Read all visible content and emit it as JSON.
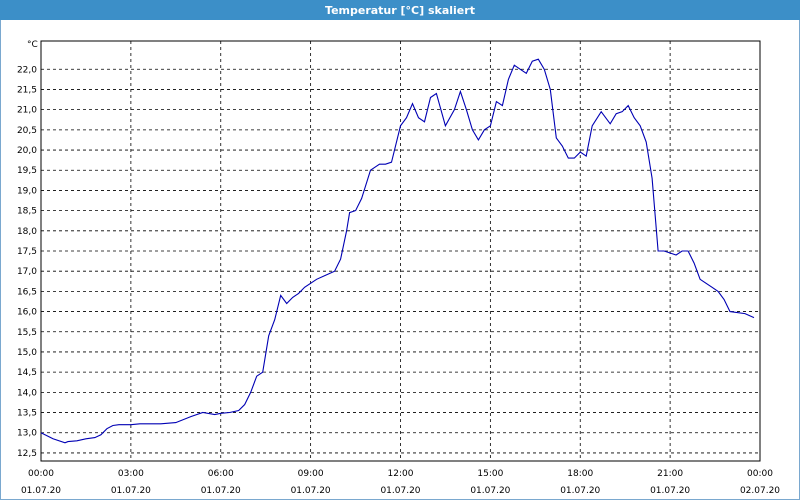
{
  "window": {
    "title": "Temperatur [°C] skaliert"
  },
  "colors": {
    "titlebar": "#3c8fc8",
    "line": "#0000b4",
    "grid": "#000000",
    "axis": "#000000"
  },
  "chart_data": {
    "type": "line",
    "title": "Temperatur [°C] skaliert",
    "ylabel": "°C",
    "xlabel": "",
    "ylim": [
      12.3,
      22.7
    ],
    "xlim": [
      0,
      24
    ],
    "y_ticks": [
      "12,5",
      "13,0",
      "13,5",
      "14,0",
      "14,5",
      "15,0",
      "15,5",
      "16,0",
      "16,5",
      "17,0",
      "17,5",
      "18,0",
      "18,5",
      "19,0",
      "19,5",
      "20,0",
      "20,5",
      "21,0",
      "21,5",
      "22,0"
    ],
    "x_ticks": [
      {
        "time": "00:00",
        "date": "01.07.20"
      },
      {
        "time": "03:00",
        "date": "01.07.20"
      },
      {
        "time": "06:00",
        "date": "01.07.20"
      },
      {
        "time": "09:00",
        "date": "01.07.20"
      },
      {
        "time": "12:00",
        "date": "01.07.20"
      },
      {
        "time": "15:00",
        "date": "01.07.20"
      },
      {
        "time": "18:00",
        "date": "01.07.20"
      },
      {
        "time": "21:00",
        "date": "01.07.20"
      },
      {
        "time": "00:00",
        "date": "02.07.20"
      }
    ],
    "grid": true,
    "series": [
      {
        "x": [
          0.0,
          0.4,
          0.8,
          0.9,
          1.2,
          1.5,
          1.8,
          2.0,
          2.2,
          2.4,
          2.6,
          3.0,
          3.3,
          4.0,
          4.5,
          5.0,
          5.4,
          5.8,
          6.0,
          6.3,
          6.6,
          6.8,
          7.0,
          7.2,
          7.4,
          7.6,
          7.8,
          8.0,
          8.2,
          8.4,
          8.5,
          8.6,
          8.8,
          9.0,
          9.2,
          9.5,
          9.8,
          10.0,
          10.2,
          10.3,
          10.5,
          10.7,
          11.0,
          11.3,
          11.5,
          11.7,
          12.0,
          12.2,
          12.4,
          12.6,
          12.8,
          13.0,
          13.2,
          13.5,
          13.8,
          14.0,
          14.2,
          14.4,
          14.6,
          14.8,
          15.0,
          15.2,
          15.4,
          15.6,
          15.8,
          16.0,
          16.2,
          16.4,
          16.6,
          16.8,
          17.0,
          17.2,
          17.4,
          17.6,
          17.8,
          18.0,
          18.2,
          18.4,
          18.7,
          19.0,
          19.2,
          19.4,
          19.6,
          19.8,
          20.0,
          20.2,
          20.4,
          20.6,
          20.8,
          21.0,
          21.2,
          21.4,
          21.6,
          21.8,
          22.0,
          22.2,
          22.4,
          22.6,
          22.8,
          23.0,
          23.5,
          23.8
        ],
        "values": [
          13.0,
          12.85,
          12.75,
          12.78,
          12.8,
          12.85,
          12.88,
          12.95,
          13.1,
          13.18,
          13.2,
          13.2,
          13.22,
          13.22,
          13.25,
          13.4,
          13.5,
          13.45,
          13.48,
          13.5,
          13.55,
          13.7,
          14.0,
          14.4,
          14.5,
          15.4,
          15.8,
          16.4,
          16.2,
          16.35,
          16.4,
          16.45,
          16.6,
          16.7,
          16.8,
          16.9,
          17.0,
          17.3,
          18.0,
          18.45,
          18.5,
          18.8,
          19.5,
          19.65,
          19.65,
          19.7,
          20.6,
          20.8,
          21.15,
          20.8,
          20.7,
          21.3,
          21.4,
          20.6,
          21.0,
          21.45,
          21.0,
          20.5,
          20.25,
          20.5,
          20.6,
          21.2,
          21.1,
          21.75,
          22.1,
          22.0,
          21.9,
          22.2,
          22.25,
          22.0,
          21.5,
          20.3,
          20.1,
          19.8,
          19.8,
          19.95,
          19.85,
          20.6,
          20.95,
          20.65,
          20.9,
          20.95,
          21.1,
          20.8,
          20.6,
          20.2,
          19.3,
          17.5,
          17.5,
          17.45,
          17.4,
          17.5,
          17.5,
          17.2,
          16.8,
          16.7,
          16.6,
          16.5,
          16.3,
          16.0,
          15.95,
          15.85
        ]
      }
    ]
  }
}
